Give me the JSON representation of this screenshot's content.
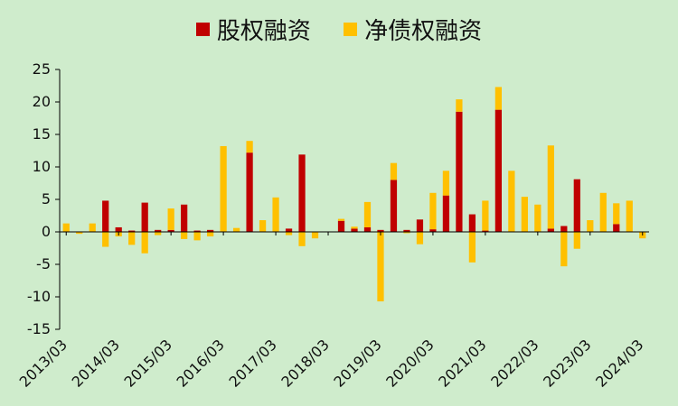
{
  "chart_data": {
    "type": "bar",
    "stacked": true,
    "series": [
      {
        "name": "股权融资",
        "color": "#c00000",
        "values": [
          0,
          0,
          0,
          4.8,
          0.7,
          0.2,
          4.5,
          0.3,
          0.3,
          4.2,
          0.2,
          0.3,
          0,
          0,
          12.2,
          0,
          0,
          0.5,
          11.9,
          0,
          0,
          1.7,
          0.5,
          0.7,
          0.3,
          8.0,
          0.3,
          1.9,
          0.4,
          5.6,
          18.5,
          2.7,
          0.2,
          18.8,
          0,
          0,
          0,
          0.5,
          0.9,
          8.1,
          0,
          0,
          1.2,
          0,
          0
        ]
      },
      {
        "name": "净债权融资",
        "color": "#ffc000",
        "values": [
          1.3,
          -0.3,
          1.3,
          -2.3,
          -0.7,
          -2.0,
          -3.3,
          -0.5,
          3.3,
          -1.1,
          -1.3,
          -0.7,
          13.2,
          0.6,
          1.8,
          1.8,
          5.3,
          -0.5,
          -2.2,
          -1.0,
          0,
          0.3,
          0.3,
          3.9,
          -10.7,
          2.6,
          -0.2,
          -1.9,
          5.6,
          3.8,
          1.9,
          -4.7,
          4.6,
          3.5,
          9.4,
          5.4,
          4.2,
          12.8,
          -5.3,
          -2.6,
          1.8,
          6.0,
          3.2,
          4.8,
          -1.0
        ]
      }
    ],
    "legend_position": "top",
    "ylim": [
      -15,
      25
    ],
    "yticks": [
      25,
      20,
      15,
      10,
      5,
      0,
      -5,
      -10,
      -15
    ],
    "xticks": [
      "2013/03",
      "2014/03",
      "2015/03",
      "2016/03",
      "2017/03",
      "2018/03",
      "2019/03",
      "2020/03",
      "2021/03",
      "2022/03",
      "2023/03",
      "2024/03"
    ],
    "xtick_index": [
      0,
      4,
      8,
      12,
      16,
      20,
      24,
      28,
      32,
      36,
      40,
      44
    ],
    "grid": false
  }
}
